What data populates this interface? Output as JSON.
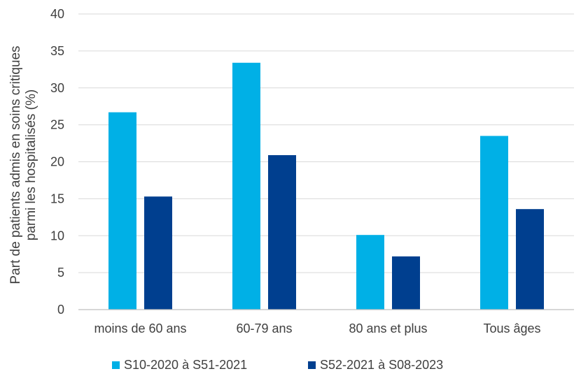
{
  "chart_data": {
    "type": "bar",
    "categories": [
      "moins de 60 ans",
      "60-79 ans",
      "80 ans et plus",
      "Tous âges"
    ],
    "series": [
      {
        "name": "S10-2020 à S51-2021",
        "color": "#00b0e6",
        "values": [
          26.7,
          33.4,
          10.1,
          23.5
        ]
      },
      {
        "name": "S52-2021 à S08-2023",
        "color": "#003f8f",
        "values": [
          15.3,
          20.9,
          7.2,
          13.6
        ]
      }
    ],
    "title": "",
    "xlabel": "",
    "ylabel_lines": [
      "Part de patients admis en soins critiques",
      "parmi les hospitalisés (%)"
    ],
    "ylim": [
      0,
      40
    ],
    "yticks": [
      0,
      5,
      10,
      15,
      20,
      25,
      30,
      35,
      40
    ],
    "grid": true,
    "legend": "bottom"
  }
}
